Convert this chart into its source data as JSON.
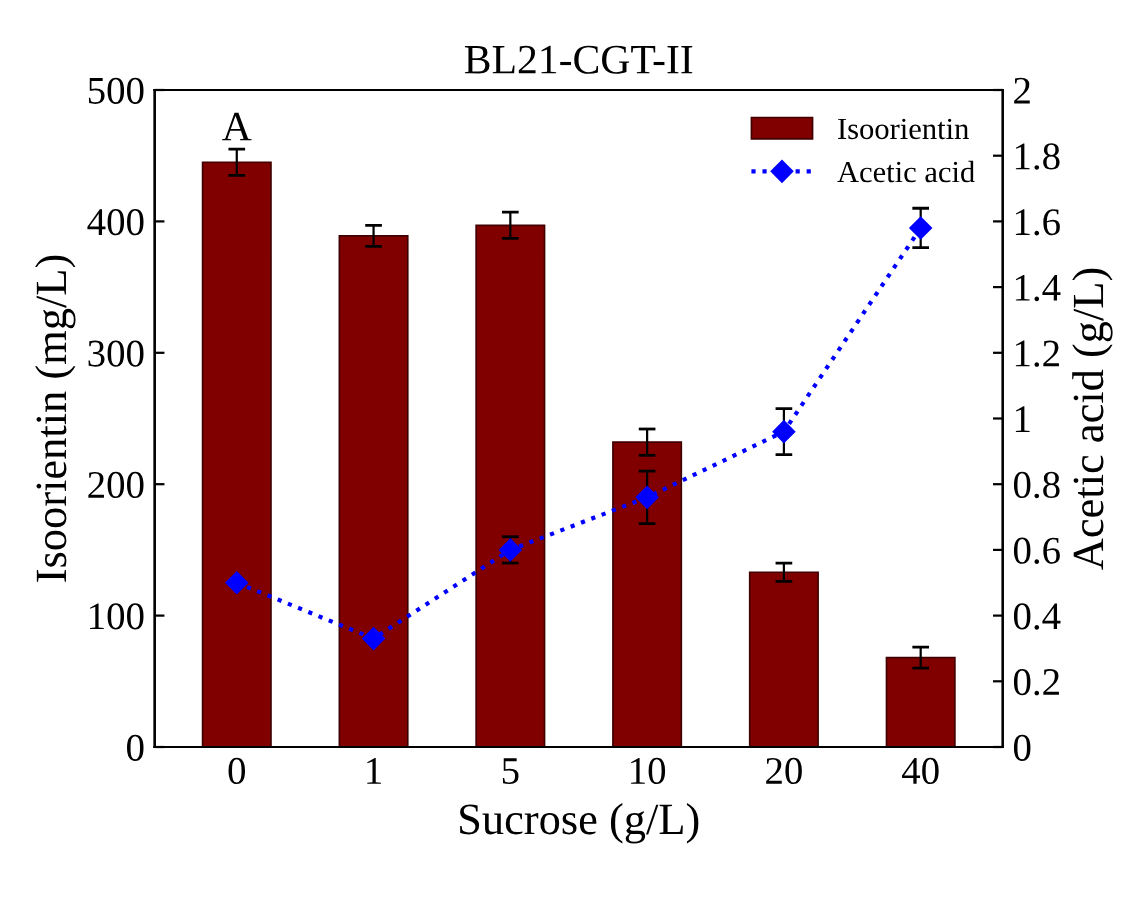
{
  "chart_data": {
    "type": "bar",
    "title": "BL21-CGT-II",
    "xlabel": "Sucrose (g/L)",
    "ylabel": "Isoorientin (mg/L)",
    "y2label": "Acetic acid (g/L)",
    "categories": [
      "0",
      "1",
      "5",
      "10",
      "20",
      "40"
    ],
    "series": [
      {
        "name": "Isoorientin",
        "color": "#800000",
        "values": [
          445,
          389,
          397,
          232,
          133,
          68
        ],
        "errors": [
          10,
          8,
          10,
          10,
          7,
          8
        ]
      },
      {
        "name": "Acetic acid",
        "type": "line",
        "axis": "y2",
        "color": "#0000ff",
        "marker": "diamond",
        "line_style": "dotted",
        "values": [
          0.5,
          0.33,
          0.6,
          0.76,
          0.96,
          1.58
        ],
        "errors": [
          null,
          null,
          0.04,
          0.08,
          0.07,
          0.06
        ]
      }
    ],
    "ylim": [
      0,
      500
    ],
    "yticks": [
      0,
      100,
      200,
      300,
      400,
      500
    ],
    "y2lim": [
      0,
      2
    ],
    "y2ticks": [
      0,
      0.2,
      0.4,
      0.6,
      0.8,
      1,
      1.2,
      1.4,
      1.6,
      1.8,
      2
    ],
    "annotations": [
      {
        "text": "A",
        "x": "0",
        "y": 455
      }
    ],
    "legend": "top right",
    "grid": false
  }
}
